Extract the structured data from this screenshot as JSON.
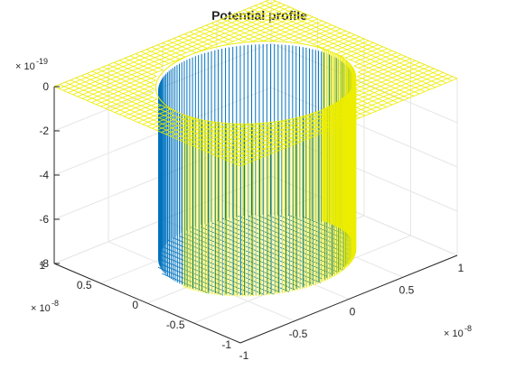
{
  "chart_data": {
    "type": "surface",
    "title": "Potential profile",
    "xlabel": "",
    "ylabel": "",
    "zlabel": "",
    "x_ticks": [
      "-1",
      "-0.5",
      "0",
      "0.5",
      "1"
    ],
    "y_ticks": [
      "-1",
      "-0.5",
      "0",
      "0.5",
      "1"
    ],
    "z_ticks": [
      "-8",
      "-6",
      "-4",
      "-2",
      "0"
    ],
    "x_exponent": {
      "base": "× 10",
      "power": "-8"
    },
    "y_exponent": {
      "base": "× 10",
      "power": "-8"
    },
    "z_exponent": {
      "base": "× 10",
      "power": "-19"
    },
    "xlim": [
      -1e-08,
      1e-08
    ],
    "ylim": [
      -1e-08,
      1e-08
    ],
    "zlim": [
      -8e-19,
      0
    ],
    "series": [
      {
        "region": "outside radius",
        "z": 0,
        "color": "#EDED00"
      },
      {
        "region": "inside radius",
        "z": -7.8e-19,
        "color": "#0072BD"
      }
    ],
    "well_radius": 7e-09,
    "grid": true,
    "mesh": "wireframe"
  }
}
